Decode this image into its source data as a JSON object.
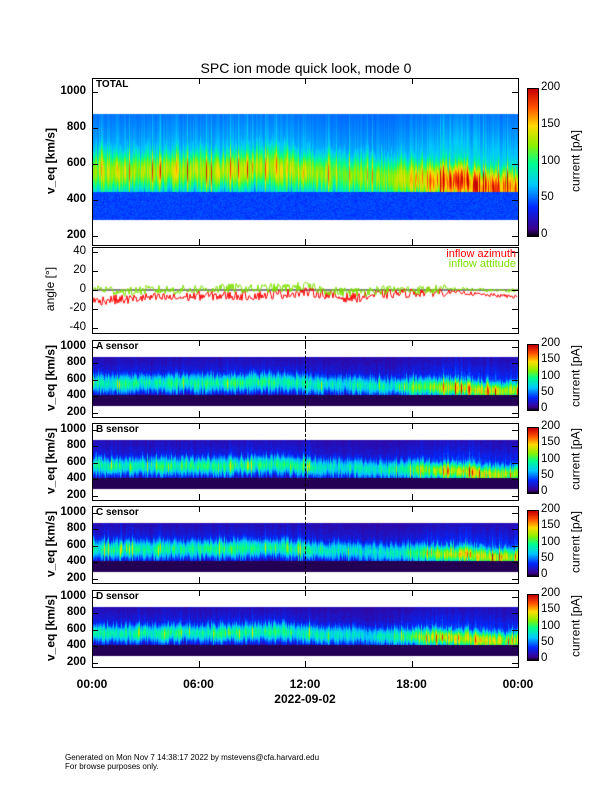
{
  "title": "SPC ion mode quick look, mode 0",
  "chart_data": {
    "type": "heatmap",
    "x_ticks": [
      "00:00",
      "06:00",
      "12:00",
      "18:00",
      "00:00"
    ],
    "xlabel": "2022-09-02",
    "x_range_hours": [
      0,
      24
    ],
    "panels": [
      {
        "id": "total",
        "label": "TOTAL",
        "ylabel": "v_eq [km/s]",
        "ylim": [
          150,
          1080
        ],
        "y_ticks": [
          "200",
          "400",
          "600",
          "800",
          "1000"
        ],
        "colorbar_label": "current [pA]",
        "clim": [
          0,
          200
        ],
        "colorbar_ticks": [
          "0",
          "50",
          "100",
          "150",
          "200"
        ],
        "data_vmin": 290,
        "data_vmax": 880
      },
      {
        "id": "a",
        "label": "A sensor",
        "ylabel": "v_eq [km/s]",
        "ylim": [
          150,
          1080
        ],
        "y_ticks": [
          "200",
          "400",
          "600",
          "800",
          "1000"
        ],
        "colorbar_label": "current [pA]",
        "clim": [
          0,
          200
        ],
        "colorbar_ticks": [
          "0",
          "50",
          "100",
          "150",
          "200"
        ],
        "data_vmin": 290,
        "data_vmax": 880
      },
      {
        "id": "b",
        "label": "B sensor",
        "ylabel": "v_eq [km/s]",
        "ylim": [
          150,
          1080
        ],
        "y_ticks": [
          "200",
          "400",
          "600",
          "800",
          "1000"
        ],
        "colorbar_label": "current [pA]",
        "clim": [
          0,
          200
        ],
        "colorbar_ticks": [
          "0",
          "50",
          "100",
          "150",
          "200"
        ],
        "data_vmin": 290,
        "data_vmax": 880
      },
      {
        "id": "c",
        "label": "C sensor",
        "ylabel": "v_eq [km/s]",
        "ylim": [
          150,
          1080
        ],
        "y_ticks": [
          "200",
          "400",
          "600",
          "800",
          "1000"
        ],
        "colorbar_label": "current [pA]",
        "clim": [
          0,
          200
        ],
        "colorbar_ticks": [
          "0",
          "50",
          "100",
          "150",
          "200"
        ],
        "data_vmin": 290,
        "data_vmax": 880
      },
      {
        "id": "d",
        "label": "D sensor",
        "ylabel": "v_eq [km/s]",
        "ylim": [
          150,
          1080
        ],
        "y_ticks": [
          "200",
          "400",
          "600",
          "800",
          "1000"
        ],
        "colorbar_label": "current [pA]",
        "clim": [
          0,
          200
        ],
        "colorbar_ticks": [
          "0",
          "50",
          "100",
          "150",
          "200"
        ],
        "data_vmin": 290,
        "data_vmax": 880
      }
    ],
    "peak_velocity_hourly": [
      570,
      560,
      560,
      565,
      560,
      570,
      565,
      560,
      570,
      575,
      580,
      575,
      560,
      545,
      550,
      540,
      525,
      525,
      520,
      515,
      510,
      505,
      470,
      470,
      470
    ],
    "peak_current_hourly": [
      95,
      100,
      100,
      95,
      100,
      100,
      100,
      100,
      105,
      100,
      100,
      100,
      100,
      90,
      85,
      85,
      85,
      90,
      110,
      130,
      140,
      150,
      150,
      140,
      140
    ],
    "angle_panel": {
      "ylabel": "angle [°]",
      "ylim": [
        -45,
        45
      ],
      "y_ticks": [
        "-40",
        "-20",
        "0",
        "20",
        "40"
      ],
      "series": [
        {
          "name": "inflow azimuth",
          "color": "#ff0000",
          "hourly_mean": [
            -12,
            -10,
            -10,
            -8,
            -8,
            -8,
            -6,
            -6,
            -6,
            -6,
            -5,
            -4,
            -2,
            -4,
            -8,
            -8,
            -5,
            -4,
            -3,
            -2,
            -2,
            -3,
            -5,
            -6,
            -7
          ]
        },
        {
          "name": "inflow attitude",
          "color": "#7ee000",
          "hourly_mean": [
            2,
            0,
            -2,
            0,
            0,
            0,
            1,
            1,
            2,
            1,
            2,
            2,
            4,
            0,
            -2,
            -2,
            0,
            0,
            0,
            0,
            1,
            1,
            0,
            -1,
            0
          ]
        }
      ]
    }
  },
  "footer": {
    "line1": "Generated on Mon Nov  7 14:38:17 2022 by mstevens@cfa.harvard.edu",
    "line2": "For browse purposes only."
  }
}
